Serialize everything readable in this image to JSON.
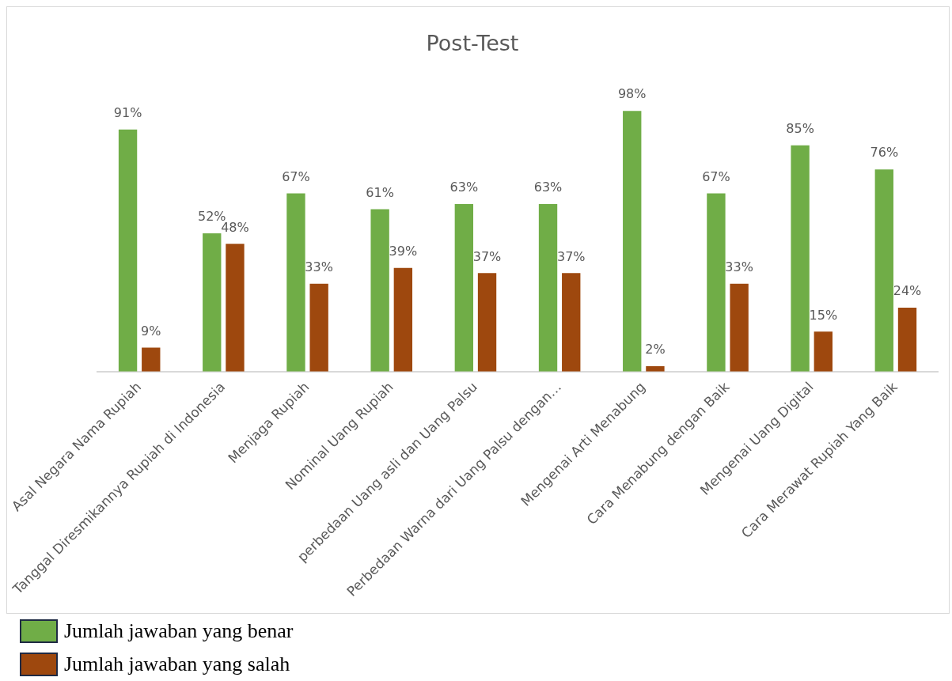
{
  "chart_data": {
    "type": "bar",
    "title": "Post-Test",
    "categories": [
      "Asal Negara Nama Rupiah",
      "Tanggal Diresmikannya Rupiah di Indonesia",
      "Menjaga Rupiah",
      "Nominal Uang Rupiah",
      "perbedaan Uang asli dan Uang Palsu",
      "Perbedaan Warna dari Uang Palsu dengan…",
      "Mengenai Arti Menabung",
      "Cara Menabung dengan Baik",
      "Mengenai Uang Digital",
      "Cara Merawat Rupiah Yang Baik"
    ],
    "series": [
      {
        "name": "Jumlah jawaban yang benar",
        "color": "#70ad47",
        "values": [
          91,
          52,
          67,
          61,
          63,
          63,
          98,
          67,
          85,
          76
        ],
        "value_labels": [
          "91%",
          "52%",
          "67%",
          "61%",
          "63%",
          "63%",
          "98%",
          "67%",
          "85%",
          "76%"
        ]
      },
      {
        "name": "Jumlah jawaban yang salah",
        "color": "#9e480e",
        "values": [
          9,
          48,
          33,
          39,
          37,
          37,
          2,
          33,
          15,
          24
        ],
        "value_labels": [
          "9%",
          "48%",
          "33%",
          "39%",
          "37%",
          "37%",
          "2%",
          "33%",
          "15%",
          "24%"
        ]
      }
    ],
    "tick_labels": "x",
    "grid": false,
    "legend": "bottom left"
  }
}
